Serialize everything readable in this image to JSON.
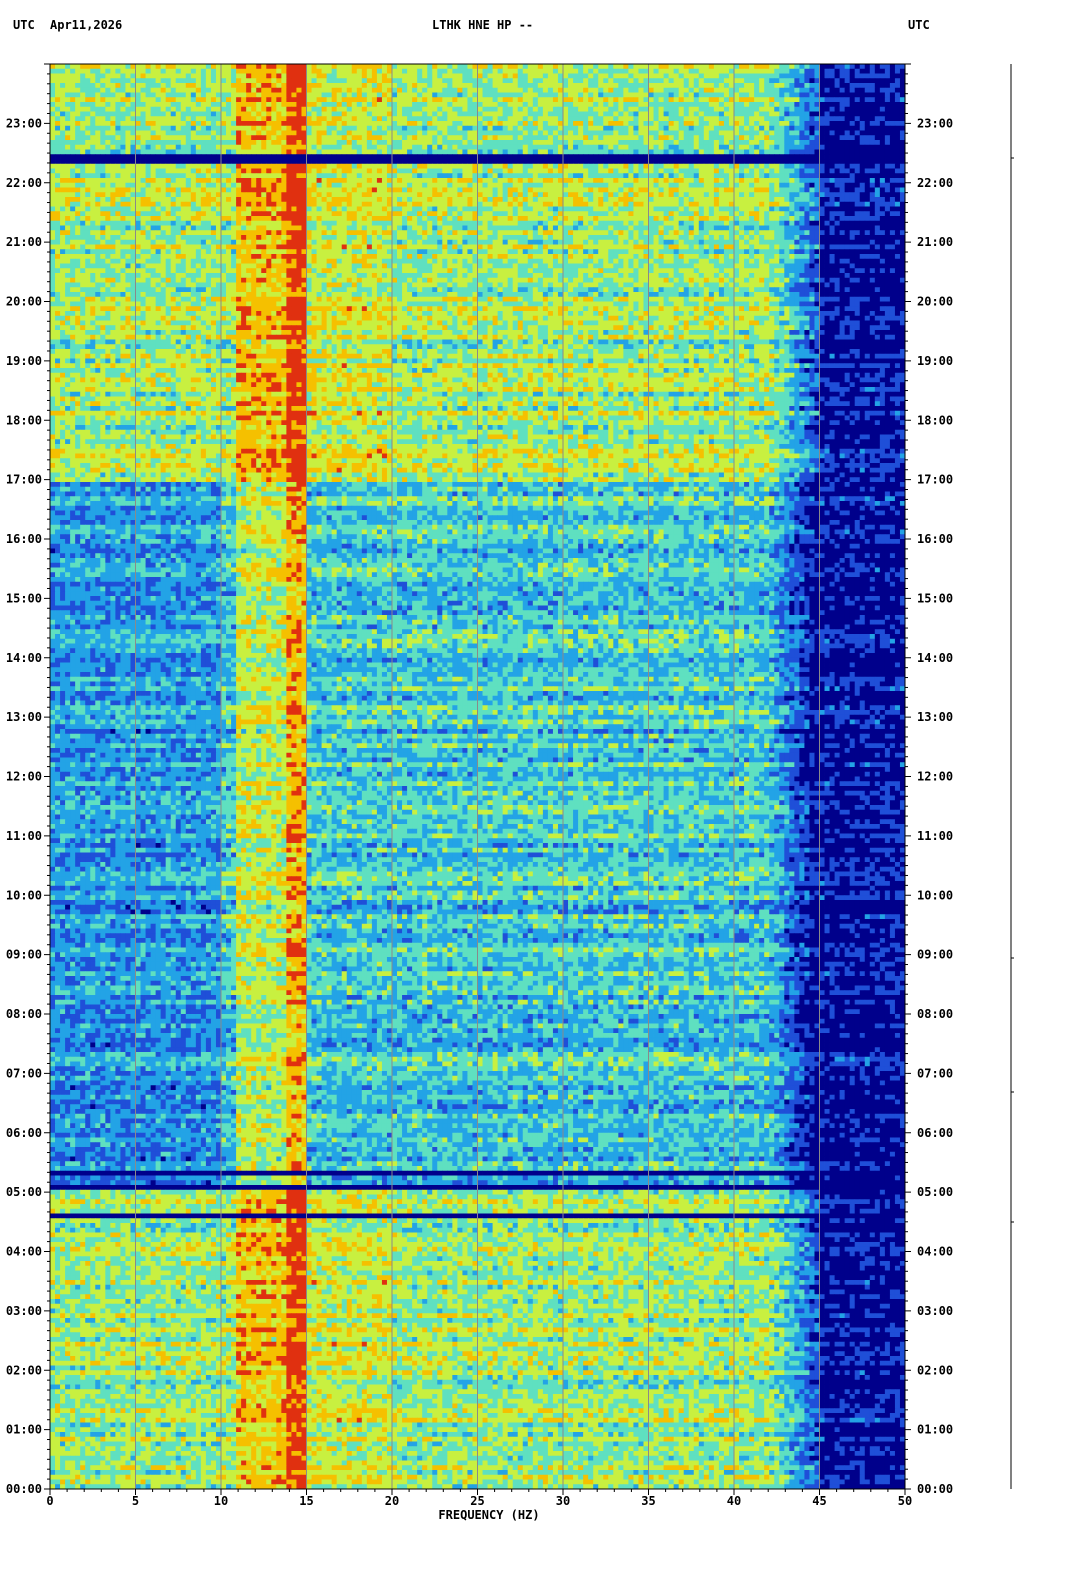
{
  "header": {
    "left_tz": "UTC",
    "date": "Apr11,2026",
    "station": "LTHK HNE HP --",
    "right_tz": "UTC"
  },
  "chart_data": {
    "type": "heatmap",
    "title": "LTHK HNE HP --",
    "xlabel": "FREQUENCY (HZ)",
    "ylabel": "",
    "xlim": [
      0,
      50
    ],
    "x_ticks": [
      0,
      5,
      10,
      15,
      20,
      25,
      30,
      35,
      40,
      45,
      50
    ],
    "y_ticks_utc": [
      "00:00",
      "01:00",
      "02:00",
      "03:00",
      "04:00",
      "05:00",
      "06:00",
      "07:00",
      "08:00",
      "09:00",
      "10:00",
      "11:00",
      "12:00",
      "13:00",
      "14:00",
      "15:00",
      "16:00",
      "17:00",
      "18:00",
      "19:00",
      "20:00",
      "21:00",
      "22:00",
      "23:00"
    ],
    "y_range_hours": [
      0,
      24
    ],
    "grid": true,
    "colormap": [
      "#00008b",
      "#1f4fd8",
      "#23a3e6",
      "#5fe0c0",
      "#c8f040",
      "#f5c000",
      "#e03010"
    ],
    "features": {
      "high_energy_band_hz": [
        11,
        15
      ],
      "spectral_line_hz": 14.3,
      "rolloff_start_hz": 42,
      "rolloff_end_hz": 45,
      "quiet_hours_utc": [
        5,
        17
      ],
      "gap_hours_utc": [
        5.1,
        5.3,
        4.6,
        22.4
      ]
    }
  }
}
